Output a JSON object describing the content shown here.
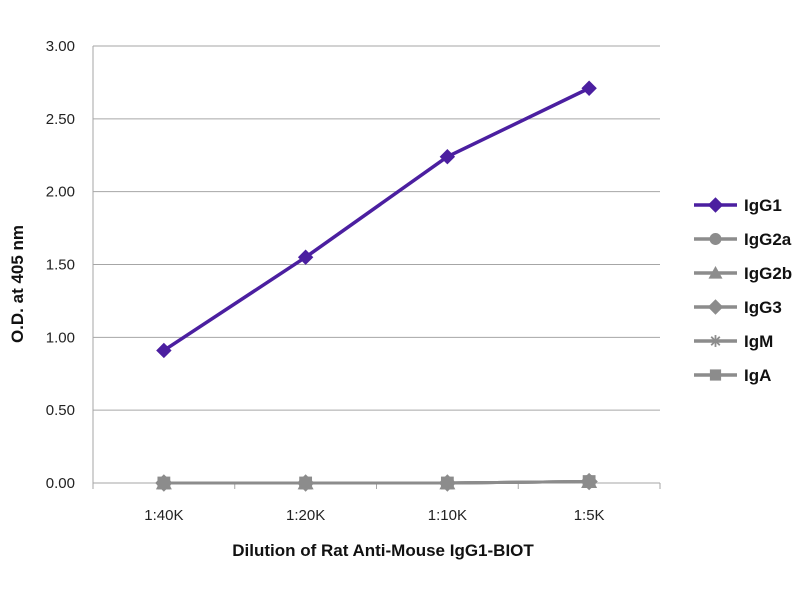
{
  "chart_data": {
    "type": "line",
    "title": "",
    "xlabel": "Dilution of Rat Anti-Mouse IgG1-BIOT",
    "ylabel": "O.D. at 405 nm",
    "ylim": [
      0,
      3
    ],
    "y_ticks": [
      "0.00",
      "0.50",
      "1.00",
      "1.50",
      "2.00",
      "2.50",
      "3.00"
    ],
    "categories": [
      "1:40K",
      "1:20K",
      "1:10K",
      "1:5K"
    ],
    "grid": "horizontal",
    "legend_position": "right",
    "series": [
      {
        "name": "IgG1",
        "marker": "diamond",
        "color": "#4b1fa0",
        "values": [
          0.91,
          1.55,
          2.24,
          2.71
        ]
      },
      {
        "name": "IgG2a",
        "marker": "circle",
        "color": "#8c8c8c",
        "values": [
          0.0,
          0.0,
          0.0,
          0.01
        ]
      },
      {
        "name": "IgG2b",
        "marker": "triangle",
        "color": "#8c8c8c",
        "values": [
          0.0,
          0.0,
          0.0,
          0.01
        ]
      },
      {
        "name": "IgG3",
        "marker": "diamond",
        "color": "#8c8c8c",
        "values": [
          0.0,
          0.0,
          0.0,
          0.01
        ]
      },
      {
        "name": "IgM",
        "marker": "asterisk",
        "color": "#8c8c8c",
        "values": [
          0.0,
          0.0,
          0.0,
          0.01
        ]
      },
      {
        "name": "IgA",
        "marker": "square",
        "color": "#8c8c8c",
        "values": [
          0.0,
          0.0,
          0.0,
          0.01
        ]
      }
    ]
  }
}
